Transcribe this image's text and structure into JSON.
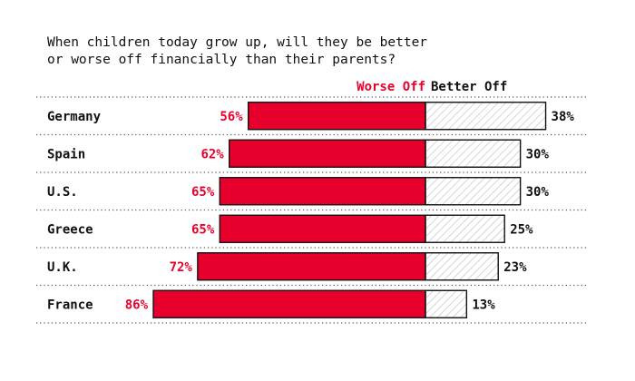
{
  "chart_data": {
    "type": "bar",
    "title_lines": [
      "When children today grow up, will they be better",
      "or worse off financially than their parents?"
    ],
    "legend": [
      {
        "label": "Worse Off",
        "color": "#e8002d"
      },
      {
        "label": "Better Off",
        "color": "#111111"
      }
    ],
    "categories": [
      "Germany",
      "Spain",
      "U.S.",
      "Greece",
      "U.K.",
      "France"
    ],
    "series": [
      {
        "name": "Worse Off",
        "values": [
          56,
          62,
          65,
          65,
          72,
          86
        ],
        "color": "#e8002d"
      },
      {
        "name": "Better Off",
        "values": [
          38,
          30,
          30,
          25,
          23,
          13
        ],
        "color": "#d0d0d0"
      }
    ],
    "value_suffix": "%",
    "grid": false
  }
}
